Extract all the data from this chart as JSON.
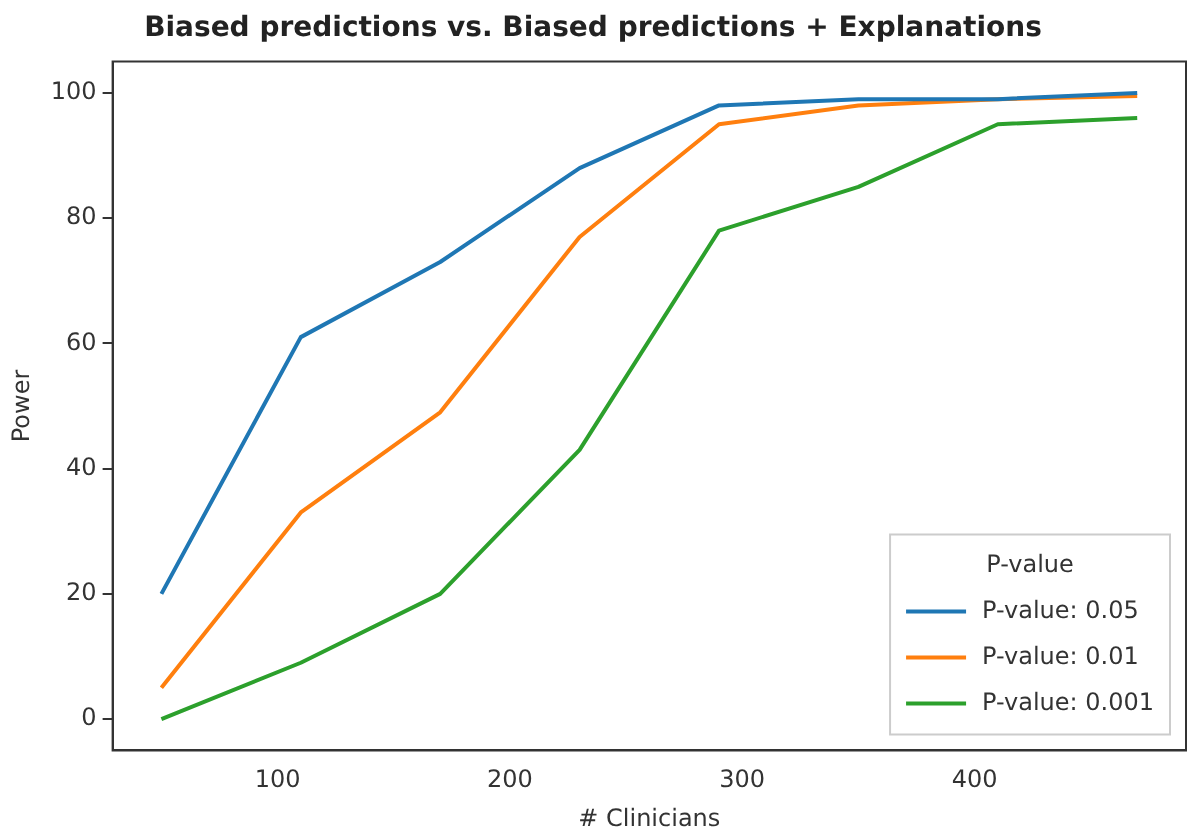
{
  "chart_data": {
    "type": "line",
    "title": "Biased predictions vs. Biased predictions + Explanations",
    "xlabel": "# Clinicians",
    "ylabel": "Power",
    "legend_title": "P-value",
    "legend": "bottom right",
    "grid": false,
    "marker": "none",
    "line_style": "solid",
    "x": [
      50,
      110,
      170,
      230,
      290,
      350,
      410,
      470
    ],
    "xlim": [
      29,
      491
    ],
    "xticks": [
      100,
      200,
      300,
      400
    ],
    "ylim": [
      -5,
      105
    ],
    "yticks": [
      0,
      20,
      40,
      60,
      80,
      100
    ],
    "series": [
      {
        "name": "P-value: 0.05",
        "color": "#1f77b4",
        "values": [
          20,
          61,
          73,
          88,
          98,
          99,
          99,
          100
        ]
      },
      {
        "name": "P-value: 0.01",
        "color": "#ff7f0e",
        "values": [
          5,
          33,
          49,
          77,
          95,
          98,
          99,
          99.5
        ]
      },
      {
        "name": "P-value: 0.001",
        "color": "#2ca02c",
        "values": [
          0,
          9,
          20,
          43,
          78,
          85,
          95,
          96
        ]
      }
    ]
  }
}
